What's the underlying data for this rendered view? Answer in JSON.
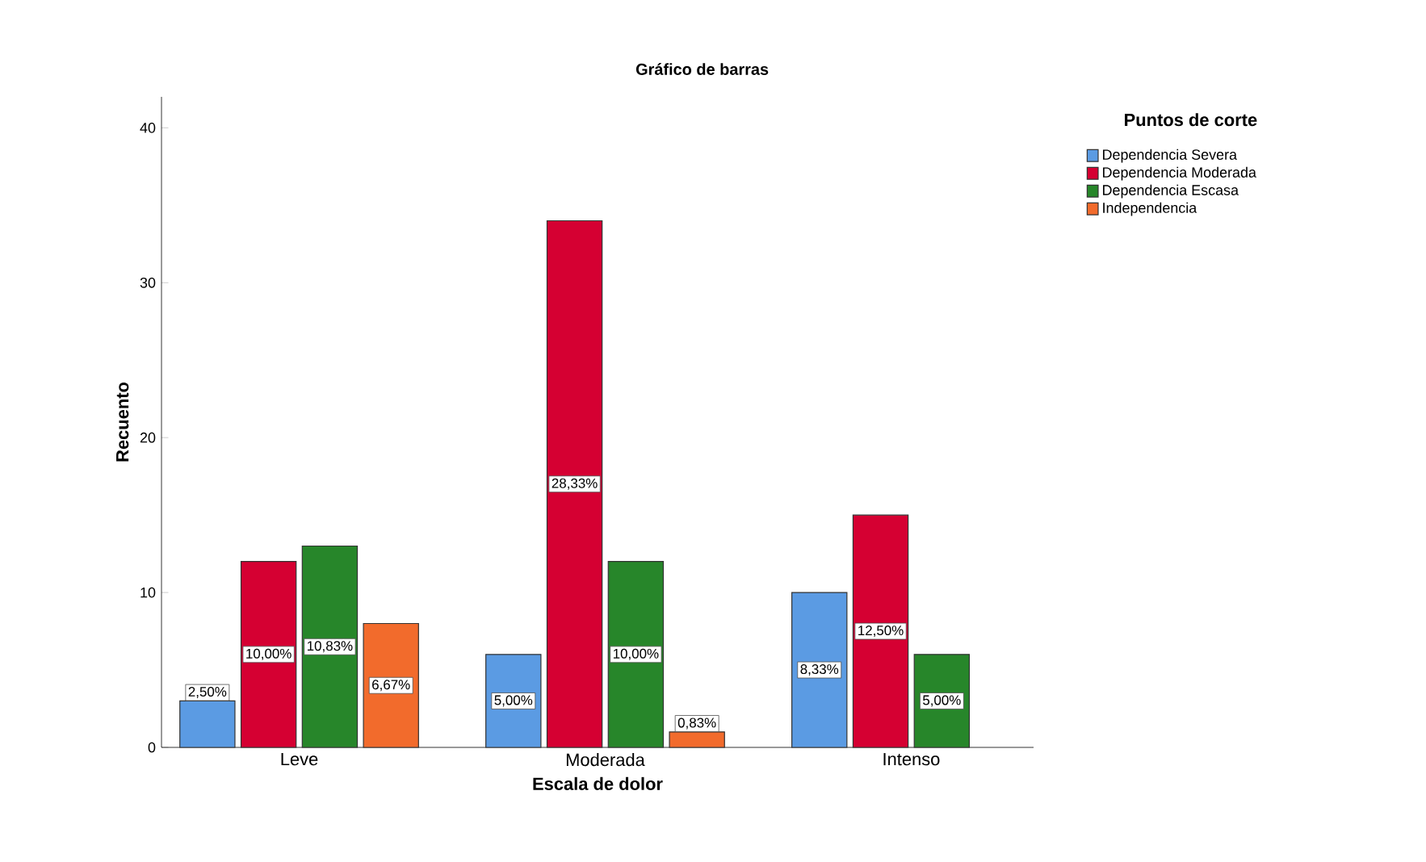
{
  "chart_data": {
    "type": "bar",
    "title": "Gráfico de barras",
    "xlabel": "Escala de dolor",
    "ylabel": "Recuento",
    "legend_title": "Puntos de corte",
    "legend": "top right",
    "categories": [
      "Leve",
      "Moderada",
      "Intenso"
    ],
    "series": [
      {
        "name": "Dependencia Severa",
        "color": "#5b9be3",
        "values": [
          3,
          6,
          10
        ]
      },
      {
        "name": "Dependencia Moderada",
        "color": "#d50032",
        "values": [
          12,
          34,
          15
        ]
      },
      {
        "name": "Dependencia Escasa",
        "color": "#27862a",
        "values": [
          13,
          12,
          6
        ]
      },
      {
        "name": "Independencia",
        "color": "#f26b2c",
        "values": [
          8,
          1,
          null
        ]
      }
    ],
    "annotations": [
      "2,50%",
      "10,00%",
      "10,83%",
      "6,67%",
      "5,00%",
      "28,33%",
      "10,00%",
      "0,83%",
      "8,33%",
      "12,50%",
      "5,00%"
    ],
    "ylim": [
      0,
      42
    ],
    "yticks": [
      0,
      10,
      20,
      30,
      40
    ]
  }
}
